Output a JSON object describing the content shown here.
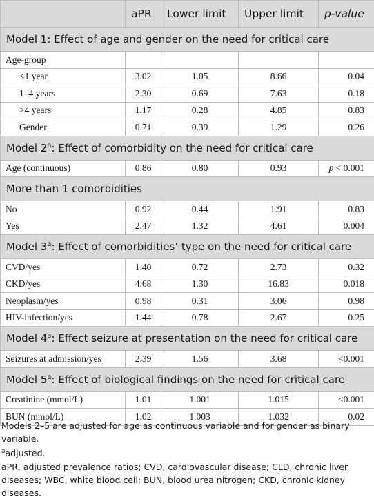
{
  "header": {
    "col_label": "",
    "col_apr": "aPR",
    "col_lower": "Lower limit",
    "col_upper": "Upper limit",
    "col_p": "p-value"
  },
  "models": [
    {
      "title": "Model 1: Effect of age and gender on the need for critical care",
      "sup": "",
      "title_rest": "",
      "rows": [
        {
          "label": "Age-group",
          "indent": false,
          "apr": "",
          "lower": "",
          "upper": "",
          "p": ""
        },
        {
          "label": "<1 year",
          "indent": true,
          "apr": "3.02",
          "lower": "1.05",
          "upper": "8.66",
          "p": "0.04"
        },
        {
          "label": "1–4 years",
          "indent": true,
          "apr": "2.30",
          "lower": "0.69",
          "upper": "7.63",
          "p": "0.18"
        },
        {
          "label": ">4 years",
          "indent": true,
          "apr": "1.17",
          "lower": "0.28",
          "upper": "4.85",
          "p": "0.83"
        },
        {
          "label": "Gender",
          "indent": true,
          "apr": "0.71",
          "lower": "0.39",
          "upper": "1.29",
          "p": "0.26"
        }
      ]
    },
    {
      "title": "Model 2",
      "sup": "a",
      "title_rest": ": Effect of comorbidity on the need for critical care",
      "rows": [
        {
          "label": "Age (continuous)",
          "indent": false,
          "apr": "0.86",
          "lower": "0.80",
          "upper": "0.93",
          "p_italic": "p",
          "p": " < 0.001"
        }
      ]
    },
    {
      "title": "More than 1 comorbidities",
      "sup": "",
      "title_rest": "",
      "rows": [
        {
          "label": "No",
          "indent": false,
          "apr": "0.92",
          "lower": "0.44",
          "upper": "1.91",
          "p": "0.83"
        },
        {
          "label": "Yes",
          "indent": false,
          "apr": "2.47",
          "lower": "1.32",
          "upper": "4.61",
          "p": "0.004"
        }
      ]
    },
    {
      "title": "Model 3",
      "sup": "a",
      "title_rest": ": Effect of comorbidities’ type on the need for critical care",
      "rows": [
        {
          "label": "CVD/yes",
          "indent": false,
          "apr": "1.40",
          "lower": "0.72",
          "upper": "2.73",
          "p": "0.32"
        },
        {
          "label": "CKD/yes",
          "indent": false,
          "apr": "4.68",
          "lower": "1.30",
          "upper": "16.83",
          "p": "0.018"
        },
        {
          "label": "Neoplasm/yes",
          "indent": false,
          "apr": "0.98",
          "lower": "0.31",
          "upper": "3.06",
          "p": "0.98"
        },
        {
          "label": "HIV-infection/yes",
          "indent": false,
          "apr": "1.44",
          "lower": "0.78",
          "upper": "2.67",
          "p": "0.25"
        }
      ]
    },
    {
      "title": "Model 4",
      "sup": "a",
      "title_rest": ": Effect seizure at presentation on the need for critical care",
      "rows": [
        {
          "label": "Seizures at admission/yes",
          "indent": false,
          "apr": "2.39",
          "lower": "1.56",
          "upper": "3.68",
          "p": "<0.001"
        }
      ]
    },
    {
      "title": "Model 5",
      "sup": "a",
      "title_rest": ": Effect of biological findings on the need for critical care",
      "rows": [
        {
          "label": "Creatinine (mmol/L)",
          "indent": false,
          "apr": "1.01",
          "lower": "1.001",
          "upper": "1.015",
          "p": "<0.001"
        },
        {
          "label": "BUN (mmol/L)",
          "indent": false,
          "apr": "1.02",
          "lower": "1.003",
          "upper": "1.032",
          "p": "0.02"
        }
      ]
    }
  ],
  "footnotes": {
    "adjustment": "Models 2–5 are adjusted for age as continuous variable and for gender as binary variable.",
    "a_sup": "a",
    "a_text": "adjusted.",
    "abbreviations": "aPR, adjusted prevalence ratios; CVD, cardiovascular disease; CLD, chronic liver diseases; WBC, white blood cell; BUN, blood urea nitrogen; CKD, chronic kidney diseases."
  }
}
